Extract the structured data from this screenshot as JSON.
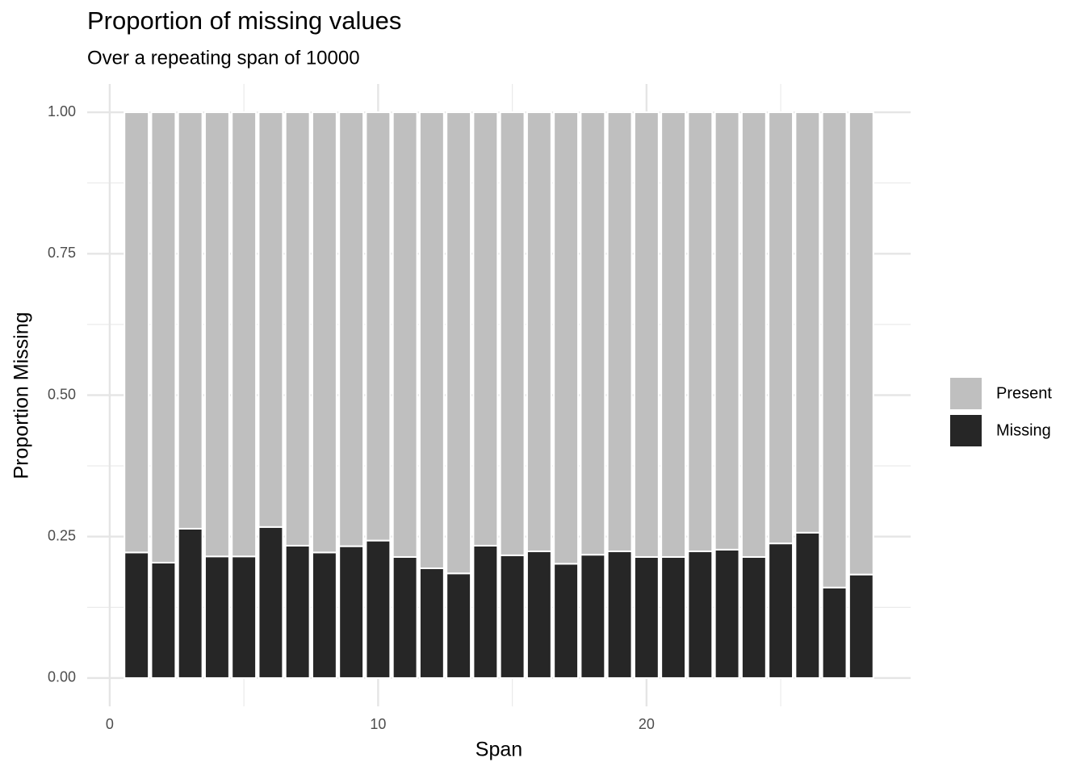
{
  "chart_data": {
    "type": "stacked-bar",
    "title": "Proportion of missing values",
    "subtitle": "Over a repeating span of 10000",
    "x_label": "Span",
    "y_label": "Proportion Missing",
    "x": [
      1,
      2,
      3,
      4,
      5,
      6,
      7,
      8,
      9,
      10,
      11,
      12,
      13,
      14,
      15,
      16,
      17,
      18,
      19,
      20,
      21,
      22,
      23,
      24,
      25,
      26,
      27,
      28
    ],
    "series": [
      {
        "name": "Missing",
        "color": "#262626",
        "values": [
          0.222,
          0.204,
          0.264,
          0.215,
          0.215,
          0.267,
          0.234,
          0.222,
          0.233,
          0.243,
          0.214,
          0.194,
          0.185,
          0.234,
          0.217,
          0.224,
          0.202,
          0.218,
          0.224,
          0.214,
          0.214,
          0.224,
          0.227,
          0.214,
          0.238,
          0.257,
          0.16,
          0.183
        ]
      },
      {
        "name": "Present",
        "color": "#bfbfbf",
        "values": [
          0.778,
          0.796,
          0.736,
          0.785,
          0.785,
          0.733,
          0.766,
          0.778,
          0.767,
          0.757,
          0.786,
          0.806,
          0.815,
          0.766,
          0.783,
          0.776,
          0.798,
          0.782,
          0.776,
          0.786,
          0.786,
          0.776,
          0.773,
          0.786,
          0.762,
          0.743,
          0.84,
          0.817
        ]
      }
    ],
    "bar_width": 0.9,
    "xlim": [
      -0.84,
      29.84
    ],
    "xticks": [
      0,
      10,
      20
    ],
    "x_minor_grid": [
      5,
      15,
      25
    ],
    "ylim": [
      -0.05,
      1.05
    ],
    "yticks": [
      {
        "value": 0,
        "label": "0.00"
      },
      {
        "value": 0.25,
        "label": "0.25"
      },
      {
        "value": 0.5,
        "label": "0.50"
      },
      {
        "value": 0.75,
        "label": "0.75"
      },
      {
        "value": 1,
        "label": "1.00"
      }
    ],
    "y_minor_grid": [
      0.125,
      0.375,
      0.625,
      0.875
    ],
    "grid": true,
    "legend": "right"
  }
}
